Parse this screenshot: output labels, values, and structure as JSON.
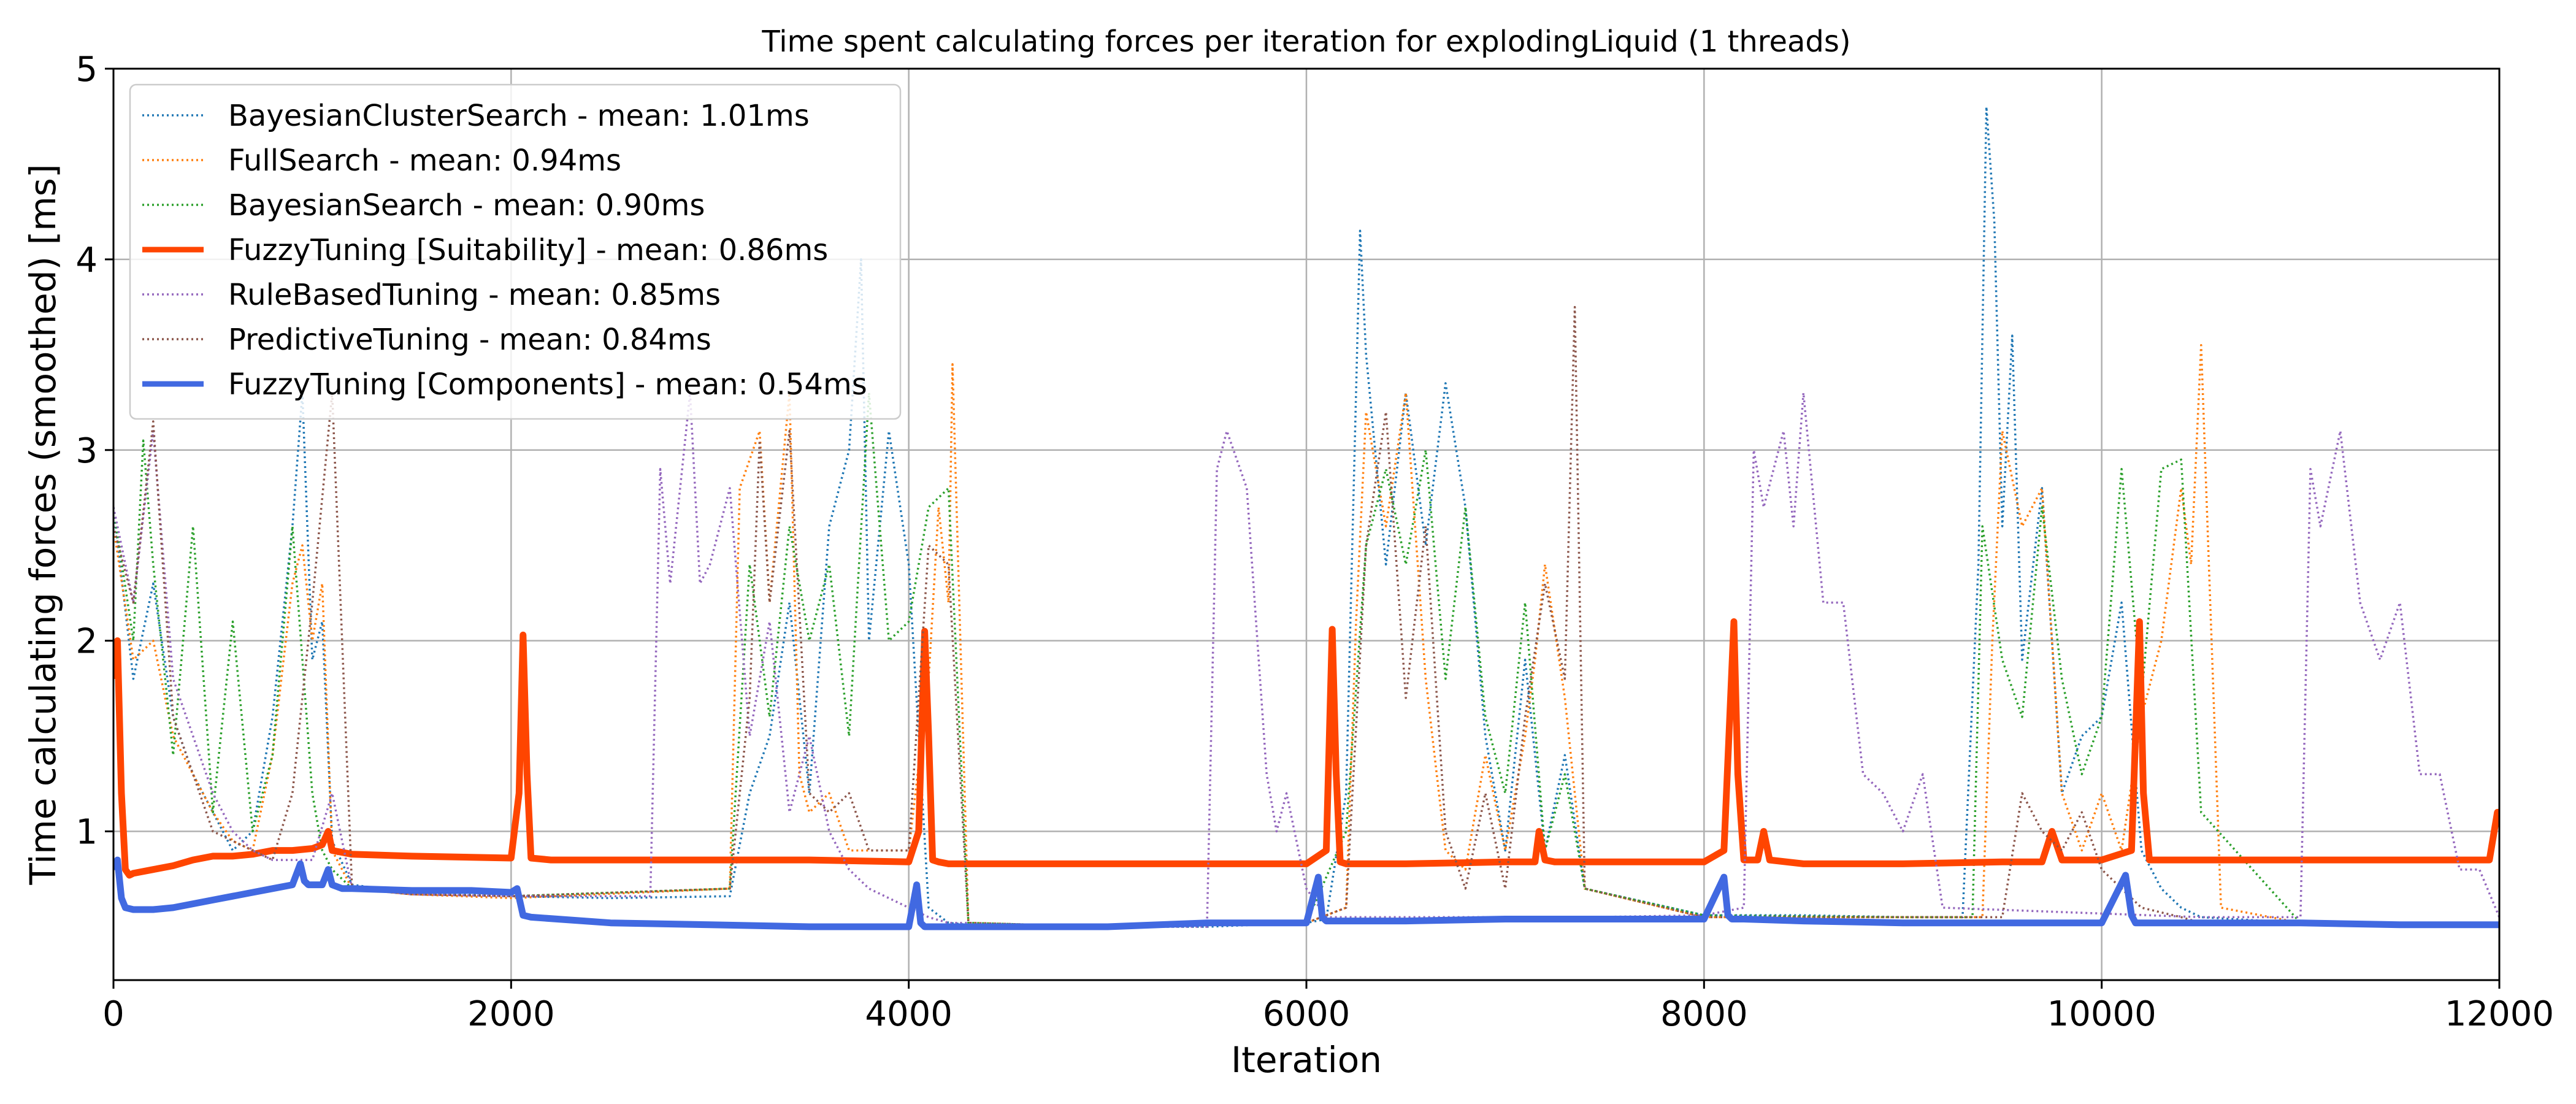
{
  "chart_data": {
    "type": "line",
    "title": "Time spent calculating forces per iteration for explodingLiquid (1 threads)",
    "xlabel": "Iteration",
    "ylabel": "Time calculating forces (smoothed) [ms]",
    "xlim": [
      0,
      12000
    ],
    "ylim": [
      0.22,
      5.0
    ],
    "xticks": [
      0,
      2000,
      4000,
      6000,
      8000,
      10000,
      12000
    ],
    "xtick_labels": [
      "0",
      "2000",
      "4000",
      "6000",
      "8000",
      "10000",
      "12000"
    ],
    "yticks": [
      1,
      2,
      3,
      4,
      5
    ],
    "ytick_labels": [
      "1",
      "2",
      "3",
      "4",
      "5"
    ],
    "grid": true,
    "legend_position": "top-left",
    "series": [
      {
        "name": "BayesianClusterSearch - mean: 1.01ms",
        "color": "#1f77b4",
        "style": "dotted",
        "x": [
          0,
          100,
          200,
          300,
          400,
          500,
          600,
          700,
          800,
          900,
          950,
          1000,
          1050,
          1100,
          1200,
          1500,
          2000,
          2500,
          3100,
          3200,
          3300,
          3400,
          3500,
          3600,
          3700,
          3760,
          3800,
          3900,
          4000,
          4100,
          4200,
          4400,
          5000,
          5500,
          6000,
          6100,
          6200,
          6270,
          6300,
          6400,
          6500,
          6600,
          6700,
          6800,
          6900,
          7000,
          7100,
          7200,
          7300,
          7400,
          8000,
          8500,
          9000,
          9300,
          9380,
          9420,
          9460,
          9500,
          9550,
          9600,
          9700,
          9800,
          9900,
          10000,
          10100,
          10200,
          10300,
          10400,
          10500,
          11000,
          11500,
          12000
        ],
        "values": [
          2.7,
          1.8,
          2.3,
          1.6,
          1.3,
          1.1,
          0.9,
          1.0,
          1.6,
          2.6,
          3.3,
          1.9,
          2.1,
          0.95,
          0.72,
          0.68,
          0.66,
          0.65,
          0.66,
          1.2,
          1.5,
          2.2,
          1.2,
          2.6,
          3.0,
          4.0,
          2.0,
          3.1,
          2.4,
          0.6,
          0.52,
          0.5,
          0.5,
          0.5,
          0.52,
          0.54,
          1.2,
          4.15,
          3.5,
          2.4,
          3.3,
          2.5,
          3.35,
          2.7,
          1.5,
          0.9,
          1.9,
          0.9,
          1.4,
          0.7,
          0.56,
          0.56,
          0.55,
          0.55,
          2.4,
          4.8,
          4.2,
          2.6,
          3.6,
          1.9,
          2.8,
          1.2,
          1.5,
          1.6,
          2.2,
          0.9,
          0.7,
          0.6,
          0.55,
          0.52,
          0.52,
          0.52
        ]
      },
      {
        "name": "FullSearch - mean: 0.94ms",
        "color": "#ff7f0e",
        "style": "dotted",
        "x": [
          0,
          100,
          200,
          300,
          400,
          500,
          600,
          700,
          800,
          900,
          950,
          1000,
          1050,
          1100,
          1200,
          1500,
          2000,
          3100,
          3150,
          3250,
          3300,
          3400,
          3450,
          3500,
          3600,
          3700,
          4000,
          4100,
          4150,
          4200,
          4220,
          4300,
          5000,
          6000,
          6200,
          6250,
          6300,
          6400,
          6500,
          6600,
          6700,
          6800,
          6900,
          7000,
          7100,
          7150,
          7200,
          7300,
          7400,
          8000,
          9000,
          9400,
          9450,
          9500,
          9600,
          9700,
          9800,
          9900,
          10000,
          10100,
          10200,
          10300,
          10400,
          10450,
          10500,
          10600,
          11000,
          12000
        ],
        "values": [
          2.6,
          1.9,
          2.0,
          1.5,
          1.3,
          1.1,
          0.95,
          0.9,
          1.4,
          2.3,
          2.5,
          2.0,
          2.3,
          0.9,
          0.7,
          0.67,
          0.65,
          0.7,
          2.8,
          3.1,
          2.2,
          3.3,
          1.3,
          1.1,
          1.2,
          0.9,
          0.9,
          1.8,
          2.7,
          2.2,
          3.45,
          0.52,
          0.5,
          0.52,
          0.6,
          2.1,
          3.2,
          2.6,
          3.3,
          1.8,
          0.9,
          0.8,
          1.4,
          0.9,
          1.5,
          1.9,
          2.4,
          1.7,
          0.7,
          0.55,
          0.55,
          0.55,
          2.0,
          3.1,
          2.6,
          2.8,
          1.2,
          0.9,
          1.2,
          0.9,
          1.6,
          2.0,
          2.8,
          2.4,
          3.55,
          0.6,
          0.52,
          0.52
        ]
      },
      {
        "name": "BayesianSearch - mean: 0.90ms",
        "color": "#2ca02c",
        "style": "dotted",
        "x": [
          0,
          100,
          150,
          200,
          300,
          400,
          500,
          600,
          700,
          800,
          900,
          1000,
          1050,
          1100,
          1200,
          1500,
          2000,
          3100,
          3200,
          3300,
          3400,
          3500,
          3600,
          3700,
          3800,
          3900,
          4000,
          4100,
          4200,
          4300,
          5000,
          6000,
          6200,
          6300,
          6400,
          6500,
          6600,
          6700,
          6800,
          6900,
          7000,
          7100,
          7200,
          7300,
          7400,
          8000,
          9000,
          9350,
          9400,
          9500,
          9600,
          9700,
          9800,
          9900,
          10000,
          10100,
          10200,
          10300,
          10400,
          10500,
          11000,
          12000
        ],
        "values": [
          2.7,
          2.0,
          3.05,
          2.4,
          1.4,
          2.6,
          1.1,
          2.1,
          1.0,
          1.4,
          2.6,
          1.2,
          0.9,
          0.8,
          0.7,
          0.67,
          0.66,
          0.7,
          2.4,
          1.6,
          2.6,
          2.0,
          2.4,
          1.5,
          3.3,
          2.0,
          2.1,
          2.7,
          2.8,
          0.52,
          0.5,
          0.52,
          1.0,
          2.5,
          2.9,
          2.4,
          3.0,
          1.8,
          2.7,
          1.6,
          1.2,
          2.2,
          0.9,
          1.3,
          0.7,
          0.56,
          0.55,
          0.55,
          2.6,
          1.9,
          1.6,
          2.7,
          1.8,
          1.3,
          1.6,
          2.9,
          1.7,
          2.9,
          2.95,
          1.1,
          0.52,
          0.52
        ]
      },
      {
        "name": "FuzzyTuning [Suitability] - mean: 0.86ms",
        "color": "#ff4500",
        "style": "solid",
        "width": 11,
        "x": [
          0,
          20,
          40,
          60,
          80,
          100,
          200,
          300,
          400,
          500,
          600,
          700,
          800,
          900,
          1000,
          1050,
          1080,
          1100,
          1200,
          1500,
          2000,
          2040,
          2060,
          2080,
          2100,
          2200,
          2500,
          3000,
          3500,
          4000,
          4050,
          4080,
          4100,
          4120,
          4150,
          4200,
          4500,
          5000,
          5500,
          6000,
          6100,
          6130,
          6150,
          6170,
          6200,
          6300,
          6500,
          7000,
          7150,
          7170,
          7200,
          7250,
          7500,
          8000,
          8100,
          8150,
          8170,
          8200,
          8270,
          8300,
          8330,
          8500,
          9000,
          9500,
          9700,
          9750,
          9800,
          10000,
          10150,
          10190,
          10210,
          10240,
          10300,
          10500,
          11000,
          11500,
          11950,
          11990,
          12000
        ],
        "values": [
          1.8,
          2.0,
          1.2,
          0.8,
          0.77,
          0.78,
          0.8,
          0.82,
          0.85,
          0.87,
          0.87,
          0.88,
          0.9,
          0.9,
          0.91,
          0.93,
          1.0,
          0.9,
          0.88,
          0.87,
          0.86,
          1.2,
          2.03,
          1.3,
          0.86,
          0.85,
          0.85,
          0.85,
          0.85,
          0.84,
          1.0,
          2.05,
          1.5,
          0.85,
          0.84,
          0.83,
          0.83,
          0.83,
          0.83,
          0.83,
          0.9,
          2.06,
          1.3,
          0.84,
          0.83,
          0.83,
          0.83,
          0.84,
          0.84,
          1.0,
          0.85,
          0.84,
          0.84,
          0.84,
          0.9,
          2.1,
          1.3,
          0.85,
          0.85,
          1.0,
          0.85,
          0.83,
          0.83,
          0.84,
          0.84,
          1.0,
          0.85,
          0.85,
          0.9,
          2.1,
          1.2,
          0.85,
          0.85,
          0.85,
          0.85,
          0.85,
          0.85,
          1.1,
          1.1
        ]
      },
      {
        "name": "RuleBasedTuning - mean: 0.85ms",
        "color": "#9467bd",
        "style": "dotted",
        "x": [
          0,
          100,
          200,
          300,
          400,
          500,
          600,
          700,
          800,
          900,
          1000,
          1100,
          1200,
          1500,
          2000,
          2700,
          2750,
          2800,
          2900,
          2950,
          3000,
          3100,
          3200,
          3300,
          3400,
          3500,
          3600,
          3700,
          3800,
          4000,
          4100,
          4200,
          4300,
          5000,
          5500,
          5550,
          5600,
          5700,
          5800,
          5850,
          5900,
          6000,
          6100,
          6200,
          6300,
          6500,
          6600,
          7000,
          7400,
          8000,
          8200,
          8250,
          8300,
          8400,
          8450,
          8500,
          8600,
          8700,
          8800,
          8900,
          9000,
          9100,
          9200,
          10500,
          11000,
          11050,
          11100,
          11200,
          11300,
          11400,
          11500,
          11600,
          11700,
          11800,
          11900,
          12000
        ],
        "values": [
          2.7,
          2.2,
          3.1,
          1.8,
          1.5,
          1.2,
          1.0,
          0.9,
          0.85,
          0.85,
          0.85,
          1.2,
          0.7,
          0.67,
          0.66,
          0.66,
          2.9,
          2.3,
          3.3,
          2.3,
          2.4,
          2.8,
          1.5,
          2.1,
          1.1,
          1.5,
          1.0,
          0.8,
          0.7,
          0.6,
          0.55,
          0.52,
          0.52,
          0.5,
          0.5,
          2.9,
          3.1,
          2.8,
          1.3,
          1.0,
          1.2,
          0.7,
          0.55,
          0.55,
          0.55,
          0.55,
          0.55,
          0.55,
          0.55,
          0.56,
          0.6,
          3.0,
          2.7,
          3.1,
          2.6,
          3.3,
          2.2,
          2.2,
          1.3,
          1.2,
          1.0,
          1.3,
          0.6,
          0.55,
          0.55,
          2.9,
          2.6,
          3.1,
          2.2,
          1.9,
          2.2,
          1.3,
          1.3,
          0.8,
          0.8,
          0.55
        ]
      },
      {
        "name": "PredictiveTuning - mean: 0.84ms",
        "color": "#8c564b",
        "style": "dotted",
        "x": [
          0,
          100,
          200,
          300,
          400,
          500,
          600,
          700,
          800,
          900,
          1000,
          1100,
          1200,
          1500,
          2000,
          3100,
          3200,
          3250,
          3300,
          3400,
          3500,
          3600,
          3700,
          3800,
          4000,
          4100,
          4200,
          4300,
          5000,
          6000,
          6200,
          6300,
          6400,
          6500,
          6600,
          6700,
          6800,
          6900,
          7000,
          7100,
          7200,
          7300,
          7350,
          7400,
          8000,
          9000,
          9500,
          9600,
          9700,
          9800,
          9900,
          10000,
          10200,
          10400,
          10500,
          11000,
          12000
        ],
        "values": [
          2.6,
          2.2,
          3.15,
          1.6,
          1.3,
          1.0,
          0.95,
          0.9,
          0.85,
          1.2,
          2.2,
          3.3,
          0.7,
          0.67,
          0.66,
          0.7,
          1.7,
          3.05,
          2.2,
          3.1,
          1.2,
          1.1,
          1.2,
          0.9,
          0.9,
          2.5,
          2.4,
          0.52,
          0.5,
          0.52,
          0.6,
          2.5,
          3.2,
          1.7,
          2.6,
          1.0,
          0.7,
          1.2,
          0.7,
          1.6,
          2.3,
          1.8,
          3.75,
          0.7,
          0.55,
          0.55,
          0.55,
          1.2,
          1.0,
          0.9,
          1.1,
          0.8,
          0.6,
          0.55,
          0.52,
          0.52,
          0.52
        ]
      },
      {
        "name": "FuzzyTuning [Components] - mean: 0.54ms",
        "color": "#4169e1",
        "style": "solid",
        "width": 11,
        "x": [
          0,
          20,
          40,
          60,
          100,
          200,
          300,
          400,
          500,
          600,
          700,
          800,
          900,
          940,
          960,
          980,
          1000,
          1050,
          1080,
          1100,
          1150,
          1200,
          1500,
          1800,
          2000,
          2030,
          2060,
          2100,
          2500,
          3000,
          3500,
          4000,
          4040,
          4060,
          4080,
          4100,
          4200,
          4500,
          5000,
          5500,
          6000,
          6060,
          6080,
          6100,
          6200,
          6500,
          7000,
          7500,
          8000,
          8100,
          8120,
          8140,
          8200,
          8500,
          9000,
          9500,
          10000,
          10120,
          10150,
          10170,
          10200,
          10500,
          11000,
          11500,
          12000
        ],
        "values": [
          0.8,
          0.85,
          0.65,
          0.6,
          0.59,
          0.59,
          0.6,
          0.62,
          0.64,
          0.66,
          0.68,
          0.7,
          0.72,
          0.83,
          0.74,
          0.72,
          0.72,
          0.72,
          0.8,
          0.72,
          0.7,
          0.7,
          0.69,
          0.69,
          0.68,
          0.7,
          0.56,
          0.55,
          0.52,
          0.51,
          0.5,
          0.5,
          0.72,
          0.52,
          0.5,
          0.5,
          0.5,
          0.5,
          0.5,
          0.52,
          0.52,
          0.76,
          0.55,
          0.53,
          0.53,
          0.53,
          0.54,
          0.54,
          0.54,
          0.76,
          0.56,
          0.54,
          0.54,
          0.53,
          0.52,
          0.52,
          0.52,
          0.77,
          0.56,
          0.52,
          0.52,
          0.52,
          0.52,
          0.51,
          0.51
        ]
      }
    ]
  }
}
